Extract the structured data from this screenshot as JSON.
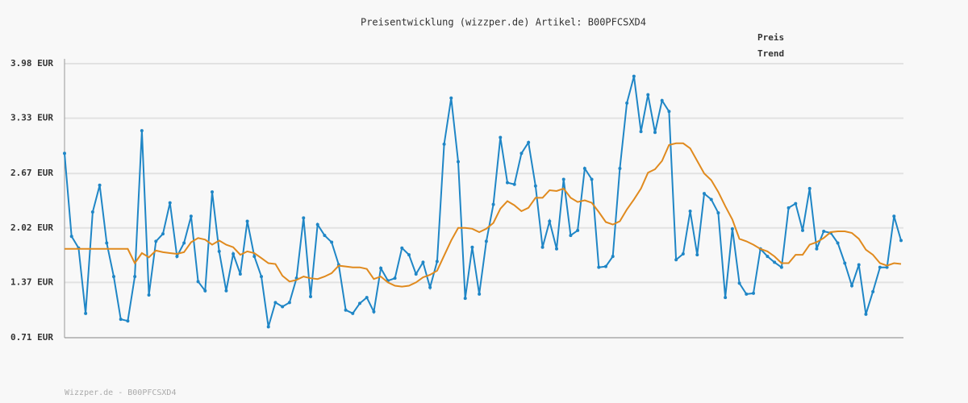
{
  "chart_data": {
    "type": "line",
    "title": "Preisentwicklung (wizzper.de) Artikel: B00PFCSXD4",
    "footer": "Wizzper.de - B00PFCSXD4",
    "categories": [
      null,
      null,
      null,
      null,
      null,
      null,
      null,
      null,
      null,
      null,
      null,
      null,
      null,
      null,
      null,
      null,
      null,
      null,
      null,
      null,
      null,
      null,
      null,
      null,
      null,
      null,
      null,
      null,
      null,
      null,
      null,
      null,
      null,
      null,
      null,
      null,
      null,
      null,
      null,
      null,
      null,
      null,
      null,
      null,
      null,
      null,
      null,
      null,
      null,
      null,
      null,
      null,
      null,
      null,
      null,
      null,
      null,
      null,
      null,
      null,
      null,
      null,
      null,
      null,
      null,
      null,
      null,
      null,
      null,
      null,
      null,
      null,
      null,
      null,
      null,
      null,
      null,
      null,
      null,
      null,
      null,
      null,
      null,
      null,
      null,
      null,
      null,
      null,
      null,
      null,
      null,
      null,
      null,
      null,
      null,
      null,
      null,
      null,
      null,
      null,
      null,
      null,
      null,
      null,
      null,
      null,
      null,
      null,
      null,
      null,
      null,
      null,
      null,
      null,
      null,
      null,
      null,
      null,
      null,
      null
    ],
    "series": [
      {
        "name": "Preis",
        "color": "#1f86c6",
        "markers": true,
        "values": [
          2.91,
          1.92,
          1.78,
          1.0,
          2.21,
          2.53,
          1.84,
          1.44,
          0.93,
          0.91,
          1.44,
          3.18,
          1.22,
          1.86,
          1.95,
          2.32,
          1.68,
          1.84,
          2.16,
          1.38,
          1.27,
          2.45,
          1.74,
          1.27,
          1.71,
          1.47,
          2.1,
          1.68,
          1.44,
          0.84,
          1.13,
          1.08,
          1.13,
          1.42,
          2.14,
          1.2,
          2.06,
          1.93,
          1.85,
          1.58,
          1.04,
          1.0,
          1.12,
          1.19,
          1.02,
          1.54,
          1.39,
          1.42,
          1.78,
          1.7,
          1.47,
          1.61,
          1.31,
          1.62,
          3.02,
          3.57,
          2.81,
          1.18,
          1.79,
          1.23,
          1.86,
          2.3,
          3.1,
          2.56,
          2.54,
          2.91,
          3.04,
          2.52,
          1.79,
          2.1,
          1.77,
          2.6,
          1.93,
          1.99,
          2.73,
          2.6,
          1.55,
          1.56,
          1.68,
          2.73,
          3.51,
          3.83,
          3.17,
          3.61,
          3.16,
          3.54,
          3.41,
          1.64,
          1.71,
          2.22,
          1.7,
          2.43,
          2.36,
          2.2,
          1.19,
          2.01,
          1.36,
          1.23,
          1.24,
          1.77,
          1.68,
          1.61,
          1.55,
          2.26,
          2.31,
          1.99,
          2.49,
          1.77,
          1.98,
          1.96,
          1.84,
          1.6,
          1.33,
          1.58,
          0.99,
          1.26,
          1.55,
          1.55,
          2.16,
          1.87
        ]
      },
      {
        "name": "Trend",
        "color": "#e08a1e",
        "markers": false,
        "values": [
          1.77,
          1.77,
          1.77,
          1.77,
          1.77,
          1.77,
          1.77,
          1.77,
          1.77,
          1.77,
          1.6,
          1.72,
          1.67,
          1.75,
          1.73,
          1.72,
          1.71,
          1.73,
          1.85,
          1.9,
          1.88,
          1.82,
          1.87,
          1.82,
          1.79,
          1.7,
          1.74,
          1.72,
          1.66,
          1.6,
          1.59,
          1.45,
          1.38,
          1.4,
          1.44,
          1.42,
          1.41,
          1.44,
          1.48,
          1.57,
          1.56,
          1.55,
          1.55,
          1.53,
          1.41,
          1.44,
          1.37,
          1.33,
          1.32,
          1.33,
          1.37,
          1.43,
          1.46,
          1.51,
          1.69,
          1.87,
          2.02,
          2.02,
          2.01,
          1.97,
          2.01,
          2.08,
          2.25,
          2.34,
          2.29,
          2.22,
          2.26,
          2.38,
          2.38,
          2.47,
          2.46,
          2.49,
          2.38,
          2.33,
          2.35,
          2.32,
          2.21,
          2.09,
          2.06,
          2.1,
          2.24,
          2.36,
          2.49,
          2.68,
          2.72,
          2.82,
          3.01,
          3.03,
          3.03,
          2.97,
          2.82,
          2.67,
          2.59,
          2.45,
          2.28,
          2.12,
          1.89,
          1.86,
          1.82,
          1.77,
          1.74,
          1.68,
          1.6,
          1.6,
          1.7,
          1.7,
          1.82,
          1.85,
          1.9,
          1.97,
          1.98,
          1.98,
          1.96,
          1.89,
          1.76,
          1.7,
          1.6,
          1.57,
          1.6,
          1.59
        ]
      }
    ],
    "ylim": [
      0.71,
      3.98
    ],
    "yticks": [
      {
        "value": 0.71,
        "label": "0.71 EUR"
      },
      {
        "value": 1.37,
        "label": "1.37 EUR"
      },
      {
        "value": 2.02,
        "label": "2.02 EUR"
      },
      {
        "value": 2.67,
        "label": "2.67 EUR"
      },
      {
        "value": 3.33,
        "label": "3.33 EUR"
      },
      {
        "value": 3.98,
        "label": "3.98 EUR"
      }
    ],
    "grid": true
  }
}
